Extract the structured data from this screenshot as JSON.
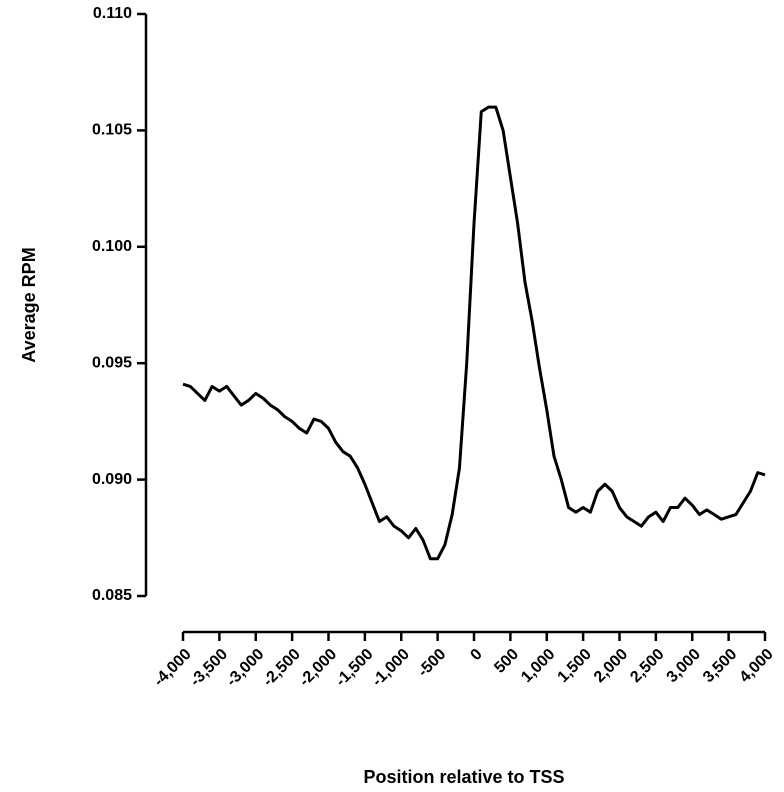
{
  "chart_data": {
    "type": "line",
    "xlabel": "Position relative to TSS",
    "ylabel": "Average RPM",
    "xlim": [
      -4000,
      4000
    ],
    "ylim": [
      0.085,
      0.11
    ],
    "xticks": [
      {
        "value": -4000,
        "label": "-4,000"
      },
      {
        "value": -3500,
        "label": "-3,500"
      },
      {
        "value": -3000,
        "label": "-3,000"
      },
      {
        "value": -2500,
        "label": "-2,500"
      },
      {
        "value": -2000,
        "label": "-2,000"
      },
      {
        "value": -1500,
        "label": "-1,500"
      },
      {
        "value": -1000,
        "label": "-1,000"
      },
      -500,
      0,
      500,
      {
        "value": 1000,
        "label": "1,000"
      },
      {
        "value": 1500,
        "label": "1,500"
      },
      {
        "value": 2000,
        "label": "2,000"
      },
      {
        "value": 2500,
        "label": "2,500"
      },
      {
        "value": 3000,
        "label": "3,000"
      },
      {
        "value": 3500,
        "label": "3,500"
      },
      {
        "value": 4000,
        "label": "4,000"
      }
    ],
    "yticks": [
      {
        "value": 0.085,
        "label": "0.085"
      },
      {
        "value": 0.09,
        "label": "0.090"
      },
      {
        "value": 0.095,
        "label": "0.095"
      },
      {
        "value": 0.1,
        "label": "0.100"
      },
      {
        "value": 0.105,
        "label": "0.105"
      },
      {
        "value": 0.11,
        "label": "0.110"
      }
    ],
    "x": [
      -4000,
      -3900,
      -3800,
      -3700,
      -3600,
      -3500,
      -3400,
      -3300,
      -3200,
      -3100,
      -3000,
      -2900,
      -2800,
      -2700,
      -2600,
      -2500,
      -2400,
      -2300,
      -2200,
      -2100,
      -2000,
      -1900,
      -1800,
      -1700,
      -1600,
      -1500,
      -1400,
      -1300,
      -1200,
      -1100,
      -1000,
      -900,
      -800,
      -700,
      -600,
      -500,
      -400,
      -300,
      -200,
      -100,
      0,
      100,
      200,
      300,
      400,
      500,
      600,
      700,
      800,
      900,
      1000,
      1100,
      1200,
      1300,
      1400,
      1500,
      1600,
      1700,
      1800,
      1900,
      2000,
      2100,
      2200,
      2300,
      2400,
      2500,
      2600,
      2700,
      2800,
      2900,
      3000,
      3100,
      3200,
      3300,
      3400,
      3500,
      3600,
      3700,
      3800,
      3900,
      4000
    ],
    "series": [
      {
        "color": "#000000",
        "values": [
          0.0941,
          0.094,
          0.0937,
          0.0934,
          0.094,
          0.0938,
          0.094,
          0.0936,
          0.0932,
          0.0934,
          0.0937,
          0.0935,
          0.0932,
          0.093,
          0.0927,
          0.0925,
          0.0922,
          0.092,
          0.0926,
          0.0925,
          0.0922,
          0.0916,
          0.0912,
          0.091,
          0.0905,
          0.0898,
          0.089,
          0.0882,
          0.0884,
          0.088,
          0.0878,
          0.0875,
          0.0879,
          0.0874,
          0.0866,
          0.0866,
          0.0872,
          0.0885,
          0.0905,
          0.095,
          0.101,
          0.1058,
          0.106,
          0.106,
          0.105,
          0.103,
          0.101,
          0.0985,
          0.0968,
          0.0948,
          0.093,
          0.091,
          0.09,
          0.0888,
          0.0886,
          0.0888,
          0.0886,
          0.0895,
          0.0898,
          0.0895,
          0.0888,
          0.0884,
          0.0882,
          0.088,
          0.0884,
          0.0886,
          0.0882,
          0.0888,
          0.0888,
          0.0892,
          0.0889,
          0.0885,
          0.0887,
          0.0885,
          0.0883,
          0.0884,
          0.0885,
          0.089,
          0.0895,
          0.0903,
          0.0902
        ]
      }
    ]
  }
}
